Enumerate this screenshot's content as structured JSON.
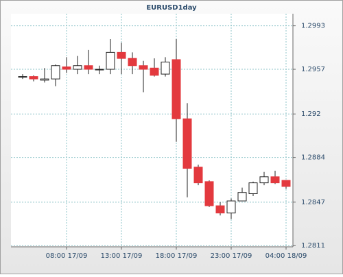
{
  "chart_data": {
    "type": "candlestick",
    "title": "EURUSD1day",
    "categories": [
      null,
      null,
      null,
      null,
      "08:00 17/09",
      null,
      null,
      null,
      null,
      "13:00 17/09",
      null,
      null,
      null,
      null,
      "18:00 17/09",
      null,
      null,
      null,
      null,
      "23:00 17/09",
      null,
      null,
      null,
      null,
      "04:00 18/09"
    ],
    "open": [
      1.2951,
      1.2951,
      1.2948,
      1.2949,
      1.2959,
      1.2957,
      1.296,
      1.2957,
      1.2957,
      1.2971,
      1.2966,
      1.296,
      1.2958,
      1.2953,
      1.2965,
      1.2916,
      1.2876,
      1.2864,
      1.2844,
      1.2838,
      1.2848,
      1.2854,
      1.2863,
      1.2868,
      1.2865
    ],
    "high": [
      1.2953,
      1.2952,
      1.2958,
      1.2961,
      1.2967,
      1.2968,
      1.2973,
      1.296,
      1.2982,
      1.2979,
      1.2971,
      1.2964,
      1.2966,
      1.2967,
      1.2982,
      1.2929,
      1.2878,
      1.2865,
      1.2847,
      1.285,
      1.2859,
      1.2864,
      1.2872,
      1.2873,
      1.2865
    ],
    "low": [
      1.2949,
      1.2947,
      1.2946,
      1.2943,
      1.2954,
      1.2953,
      1.2953,
      1.2953,
      1.2953,
      1.2953,
      1.2953,
      1.2938,
      1.2951,
      1.2951,
      1.2897,
      1.2851,
      1.2861,
      1.2843,
      1.2836,
      1.2833,
      1.2848,
      1.2852,
      1.2861,
      1.2862,
      1.2858
    ],
    "close": [
      1.2951,
      1.2949,
      1.2949,
      1.296,
      1.2957,
      1.296,
      1.2957,
      1.2957,
      1.2971,
      1.2966,
      1.296,
      1.2957,
      1.2952,
      1.2963,
      1.2916,
      1.2875,
      1.2863,
      1.2844,
      1.2838,
      1.2848,
      1.2855,
      1.2863,
      1.2868,
      1.2863,
      1.286
    ],
    "up_color": "#ffffff",
    "down_color": "#e3393e",
    "ylim": [
      1.281,
      1.3003
    ],
    "yticks": [
      1.2811,
      1.2847,
      1.2884,
      1.292,
      1.2957,
      1.2993
    ],
    "grid": true
  }
}
